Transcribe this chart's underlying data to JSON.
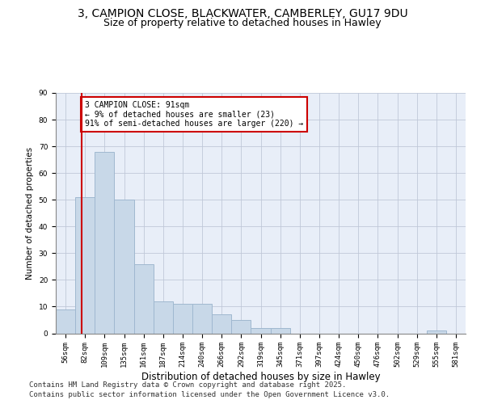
{
  "title1": "3, CAMPION CLOSE, BLACKWATER, CAMBERLEY, GU17 9DU",
  "title2": "Size of property relative to detached houses in Hawley",
  "xlabel": "Distribution of detached houses by size in Hawley",
  "ylabel": "Number of detached properties",
  "categories": [
    "56sqm",
    "82sqm",
    "109sqm",
    "135sqm",
    "161sqm",
    "187sqm",
    "214sqm",
    "240sqm",
    "266sqm",
    "292sqm",
    "319sqm",
    "345sqm",
    "371sqm",
    "397sqm",
    "424sqm",
    "450sqm",
    "476sqm",
    "502sqm",
    "529sqm",
    "555sqm",
    "581sqm"
  ],
  "values": [
    9,
    51,
    68,
    50,
    26,
    12,
    11,
    11,
    7,
    5,
    2,
    2,
    0,
    0,
    0,
    0,
    0,
    0,
    0,
    1,
    0
  ],
  "bar_color": "#c8d8e8",
  "bar_edgecolor": "#a0b8d0",
  "bar_linewidth": 0.7,
  "grid_color": "#c0c8d8",
  "bg_color": "#e8eef8",
  "marker_line_color": "#cc0000",
  "annotation_line1": "3 CAMPION CLOSE: 91sqm",
  "annotation_line2": "← 9% of detached houses are smaller (23)",
  "annotation_line3": "91% of semi-detached houses are larger (220) →",
  "annotation_box_edgecolor": "#cc0000",
  "annotation_box_facecolor": "#ffffff",
  "footer1": "Contains HM Land Registry data © Crown copyright and database right 2025.",
  "footer2": "Contains public sector information licensed under the Open Government Licence v3.0.",
  "ylim": [
    0,
    90
  ],
  "yticks": [
    0,
    10,
    20,
    30,
    40,
    50,
    60,
    70,
    80,
    90
  ],
  "title1_fontsize": 10,
  "title2_fontsize": 9,
  "ylabel_fontsize": 7.5,
  "xlabel_fontsize": 8.5,
  "tick_fontsize": 6.5,
  "footer_fontsize": 6.5,
  "annotation_fontsize": 7
}
